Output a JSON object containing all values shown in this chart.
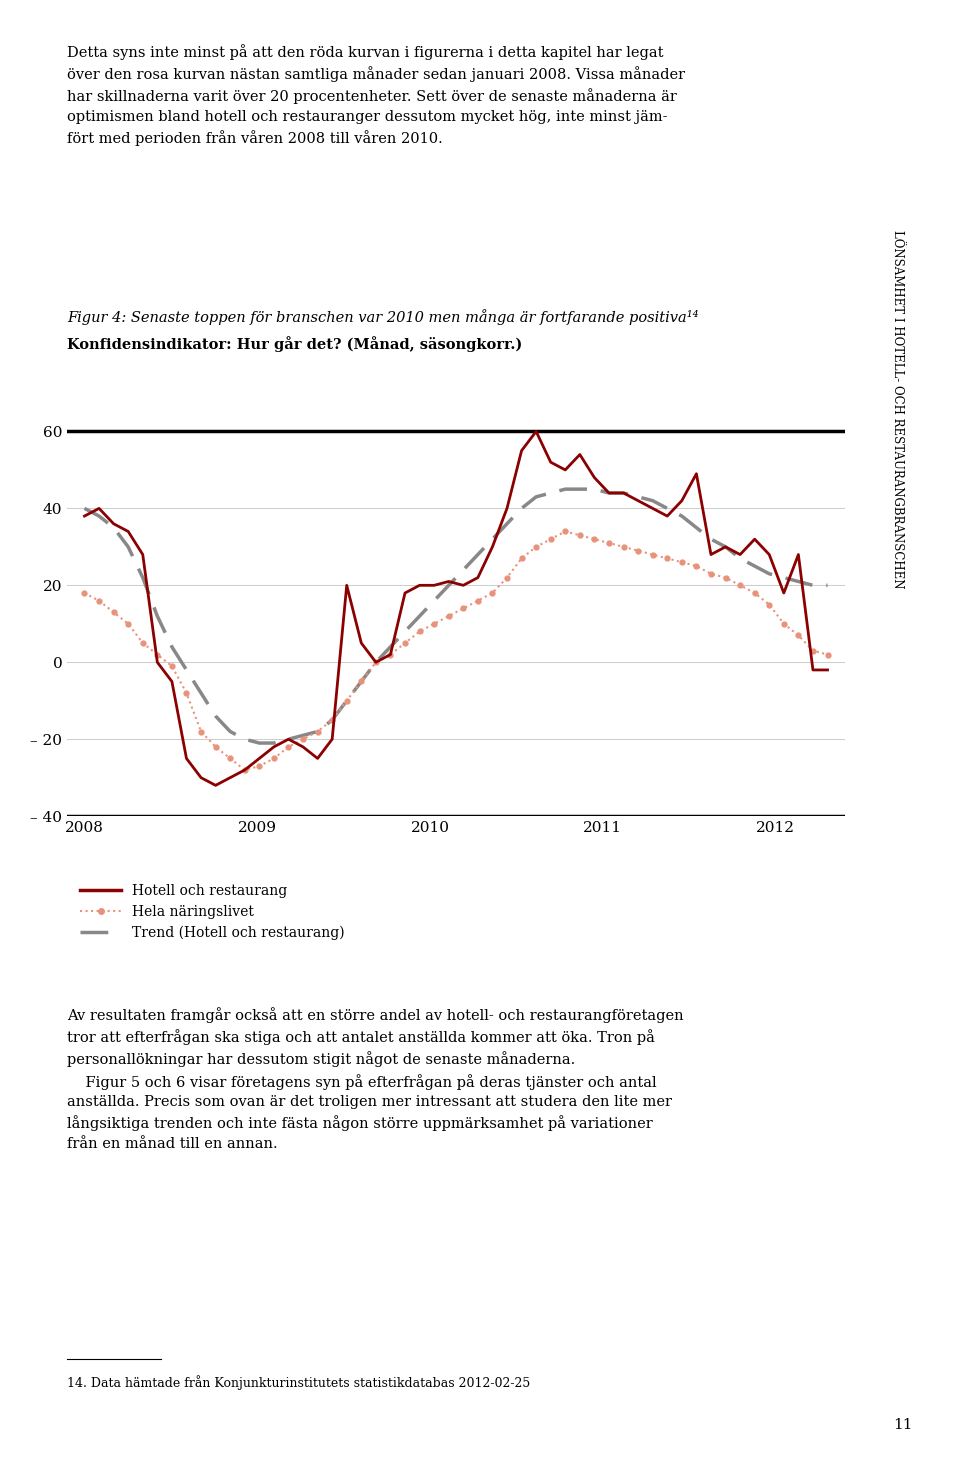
{
  "title_fig": "Figur 4: Senaste toppen för branschen var 2010 men många är fortfarande positiva¹⁴",
  "subtitle": "Konfidensindikator: Hur går det? (Månad, säsongkorr.)",
  "paragraph_top": "Detta syns inte minst på att den röda kurvan i figurerna i detta kapitel har legat\növer den rosa kurvan nästan samtliga månader sedan januari 2008. Vissa månader\nhar skillnaderna varit över 20 procentenheter. Sett över de senaste månaderna är\noptimismen bland hotell och restauranger dessutom mycket hög, inte minst jäm-\nfört med perioden från våren 2008 till våren 2010.",
  "paragraph_bottom": "Av resultaten framgår också att en större andel av hotell- och restaurangföretagen\ntror att efterfrågan ska stiga och att antalet anställda kommer att öka. Tron på\npersonallökningar har dessutom stigit något de senaste månaderna.\n    Figur 5 och 6 visar företagens syn på efterfrågan på deras tjänster och antal\nanställda. Precis som ovan är det troligen mer intressant att studera den lite mer\nlångsiktiga trenden och inte fästa någon större uppmärksamhet på variationer\nfrån en månad till en annan.",
  "footnote": "14. Data hämtade från Konjunkturinstitutets statistikdatabas 2012-02-25",
  "page_number": "11",
  "sidebar_text": "LÖNSAMHET I HOTELL- OCH RESTAURANGBRANSCHEN",
  "ylim": [
    -40,
    65
  ],
  "yticks": [
    -40,
    -20,
    0,
    20,
    40,
    60
  ],
  "xlabel_years": [
    "2008",
    "2009",
    "2010",
    "2011",
    "2012"
  ],
  "line_hotell_color": "#8B0000",
  "line_hela_color": "#E8927C",
  "line_trend_color": "#888888",
  "hotell_label": "Hotell och restaurang",
  "hela_label": "Hela näringslivet",
  "trend_label": "Trend (Hotell och restaurang)",
  "hotell_data": [
    38,
    40,
    36,
    34,
    28,
    0,
    -5,
    -25,
    -30,
    -32,
    -30,
    -28,
    -25,
    -22,
    -20,
    -22,
    -25,
    -20,
    20,
    5,
    0,
    2,
    18,
    20,
    20,
    21,
    20,
    22,
    30,
    40,
    55,
    60,
    52,
    50,
    54,
    48,
    44,
    44,
    42,
    40,
    38,
    42,
    49,
    28,
    30,
    28,
    32,
    28,
    18,
    28,
    -2,
    -2
  ],
  "hela_data": [
    18,
    16,
    13,
    10,
    5,
    2,
    -1,
    -8,
    -18,
    -22,
    -25,
    -28,
    -27,
    -25,
    -22,
    -20,
    -18,
    -15,
    -10,
    -5,
    0,
    2,
    5,
    8,
    10,
    12,
    14,
    16,
    18,
    22,
    27,
    30,
    32,
    34,
    33,
    32,
    31,
    30,
    29,
    28,
    27,
    26,
    25,
    23,
    22,
    20,
    18,
    15,
    10,
    7,
    3,
    2
  ],
  "trend_data": [
    40,
    38,
    35,
    30,
    22,
    12,
    4,
    -2,
    -8,
    -14,
    -18,
    -20,
    -21,
    -21,
    -20,
    -19,
    -18,
    -15,
    -10,
    -5,
    0,
    4,
    8,
    12,
    16,
    20,
    24,
    28,
    32,
    36,
    40,
    43,
    44,
    45,
    45,
    45,
    44,
    44,
    43,
    42,
    40,
    38,
    35,
    32,
    30,
    27,
    25,
    23,
    22,
    21,
    20,
    20
  ]
}
